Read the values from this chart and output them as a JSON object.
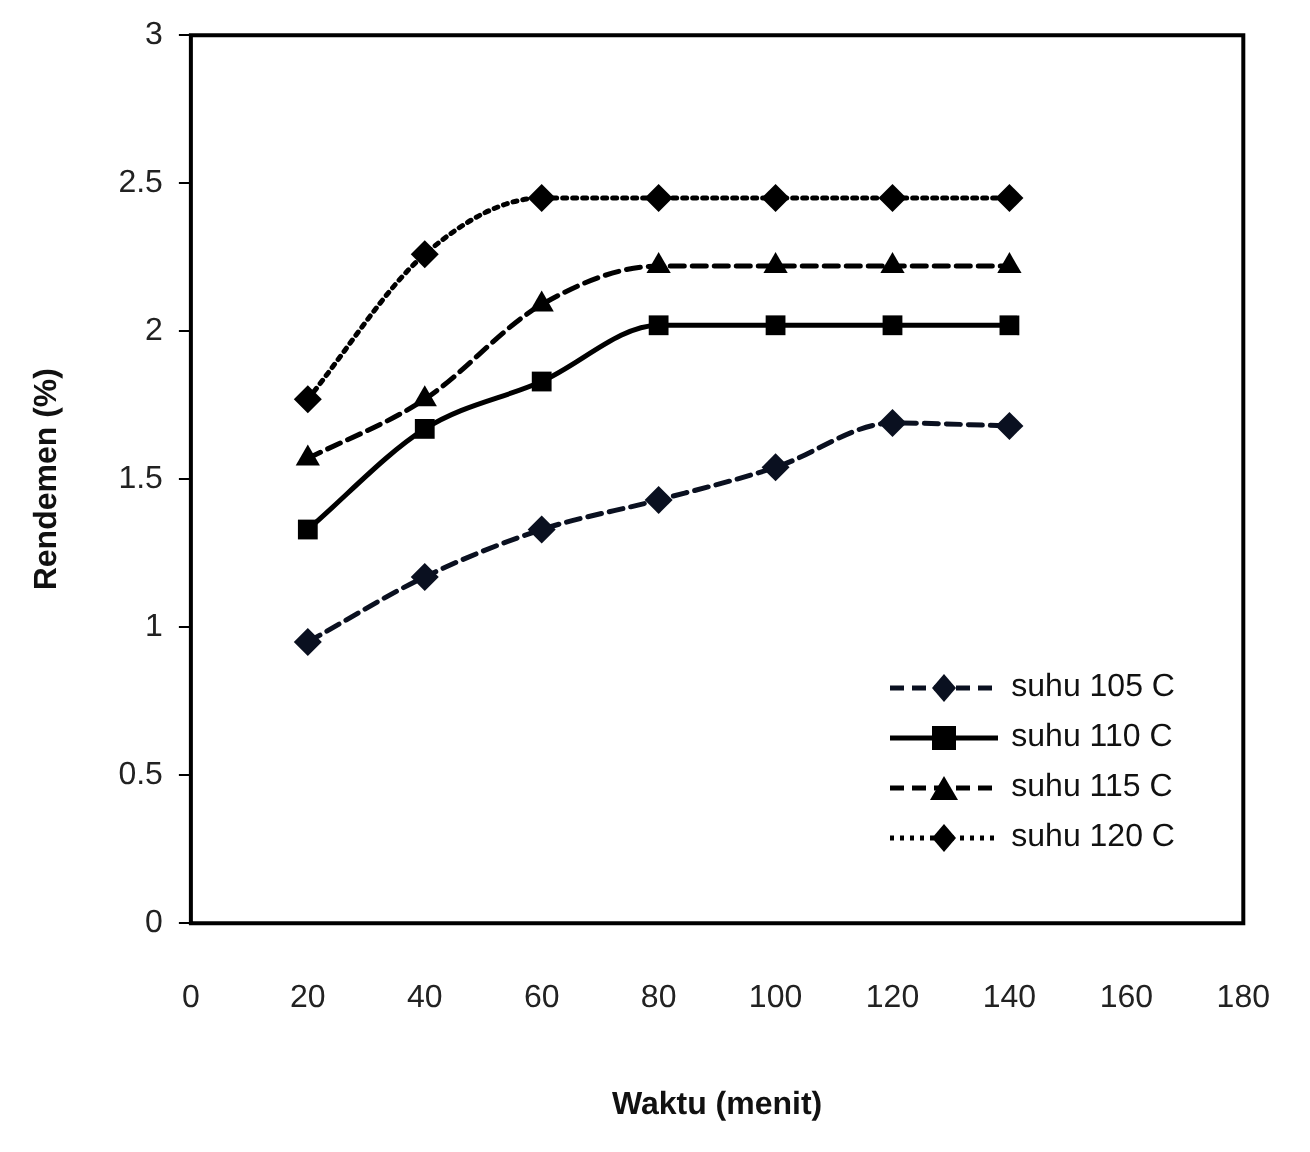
{
  "chart_data": {
    "type": "line",
    "xlabel": "Waktu (menit)",
    "ylabel": "Rendemen (%)",
    "x": [
      20,
      40,
      60,
      80,
      100,
      120,
      140
    ],
    "xlim": [
      0,
      180
    ],
    "xticks": [
      0,
      20,
      40,
      60,
      80,
      100,
      120,
      140,
      160,
      180
    ],
    "ylim": [
      0,
      3
    ],
    "yticks": [
      0,
      0.5,
      1,
      1.5,
      2,
      2.5,
      3
    ],
    "grid": false,
    "legend": "bottom right",
    "series": [
      {
        "name": "suhu 105 C",
        "color": "#0a1020",
        "values": [
          0.95,
          1.17,
          1.33,
          1.43,
          1.54,
          1.69,
          1.68
        ],
        "marker": "diamond",
        "line_style": "dashed"
      },
      {
        "name": "suhu 110 C",
        "color": "#000000",
        "values": [
          1.33,
          1.67,
          1.83,
          2.02,
          2.02,
          2.02,
          2.02
        ],
        "marker": "square",
        "line_style": "solid"
      },
      {
        "name": "suhu 115 C",
        "color": "#000000",
        "values": [
          1.57,
          1.77,
          2.09,
          2.22,
          2.22,
          2.22,
          2.22
        ],
        "marker": "triangle",
        "line_style": "dashed"
      },
      {
        "name": "suhu 120 C",
        "color": "#000000",
        "values": [
          1.77,
          2.26,
          2.45,
          2.45,
          2.45,
          2.45,
          2.45
        ],
        "marker": "diamond",
        "line_style": "dotted"
      }
    ]
  }
}
